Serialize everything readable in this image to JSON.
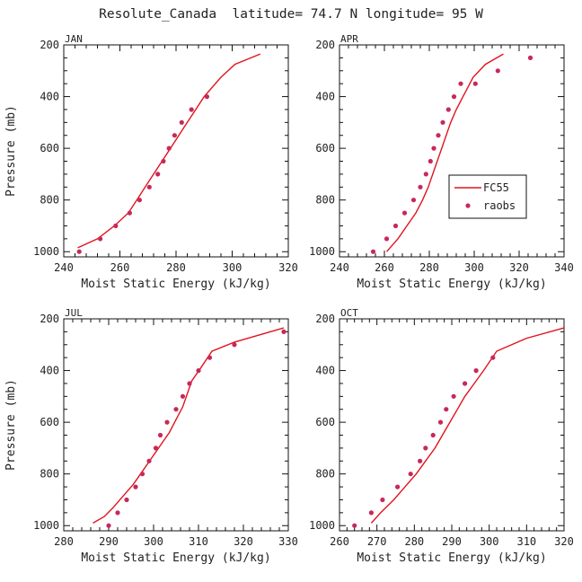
{
  "figure": {
    "title": "Resolute_Canada  latitude= 74.7 N longitude= 95 W"
  },
  "colors": {
    "model_line": "#e0141e",
    "obs_marker": "#c8285a",
    "axis": "#111111"
  },
  "chart_data": [
    {
      "type": "line",
      "panel": "JAN",
      "xlabel": "Moist Static Energy (kJ/kg)",
      "ylabel": "Pressure (mb)",
      "xlim": [
        240,
        320
      ],
      "xticks": [
        240,
        260,
        280,
        300,
        320
      ],
      "ylim": [
        1020,
        200
      ],
      "yticks": [
        200,
        400,
        600,
        800,
        1000
      ],
      "show_legend": false,
      "series": [
        {
          "name": "FC55",
          "kind": "line",
          "x": [
            245,
            252,
            258,
            263,
            266,
            269,
            272,
            275,
            278,
            281,
            284,
            287,
            290,
            296,
            301,
            310
          ],
          "y": [
            985,
            950,
            900,
            850,
            800,
            750,
            700,
            650,
            600,
            550,
            500,
            450,
            400,
            325,
            275,
            235
          ]
        },
        {
          "name": "raobs",
          "kind": "scatter",
          "x": [
            245.5,
            253,
            258.5,
            263.5,
            267,
            270.5,
            273.5,
            275.5,
            277.5,
            279.5,
            282,
            285.5,
            291
          ],
          "y": [
            1000,
            950,
            900,
            850,
            800,
            750,
            700,
            650,
            600,
            550,
            500,
            450,
            400
          ]
        }
      ]
    },
    {
      "type": "line",
      "panel": "APR",
      "xlabel": "Moist Static Energy (kJ/kg)",
      "ylabel": "",
      "xlim": [
        240,
        340
      ],
      "xticks": [
        240,
        260,
        280,
        300,
        320,
        340
      ],
      "ylim": [
        1020,
        200
      ],
      "yticks": [
        200,
        400,
        600,
        800,
        1000
      ],
      "show_legend": true,
      "legend_labels": {
        "line": "FC55",
        "scatter": "raobs"
      },
      "series": [
        {
          "name": "FC55",
          "kind": "line",
          "x": [
            261,
            266,
            270,
            274,
            277,
            279.5,
            281.5,
            283.5,
            285.5,
            287.5,
            289.5,
            292,
            295,
            299.5,
            305,
            313
          ],
          "y": [
            1000,
            950,
            900,
            850,
            800,
            750,
            700,
            650,
            600,
            550,
            500,
            450,
            400,
            325,
            275,
            235
          ]
        },
        {
          "name": "raobs",
          "kind": "scatter",
          "x": [
            255,
            261,
            265,
            269,
            273,
            276,
            278.5,
            280.5,
            282,
            284,
            286,
            288.5,
            291,
            294,
            300.5,
            310.5,
            325
          ],
          "y": [
            1000,
            950,
            900,
            850,
            800,
            750,
            700,
            650,
            600,
            550,
            500,
            450,
            400,
            350,
            350,
            300,
            250
          ]
        }
      ]
    },
    {
      "type": "line",
      "panel": "JUL",
      "xlabel": "Moist Static Energy (kJ/kg)",
      "ylabel": "Pressure (mb)",
      "xlim": [
        280,
        330
      ],
      "xticks": [
        280,
        290,
        300,
        310,
        320,
        330
      ],
      "ylim": [
        1020,
        200
      ],
      "yticks": [
        200,
        400,
        600,
        800,
        1000
      ],
      "show_legend": false,
      "series": [
        {
          "name": "FC55",
          "kind": "line",
          "x": [
            286.5,
            289,
            291,
            293.5,
            295.5,
            297.5,
            299.5,
            301.5,
            303.5,
            305,
            306.5,
            307.5,
            308.5,
            310.5,
            313,
            318,
            329
          ],
          "y": [
            990,
            965,
            930,
            880,
            840,
            790,
            740,
            690,
            640,
            590,
            540,
            490,
            440,
            390,
            325,
            290,
            235
          ]
        },
        {
          "name": "raobs",
          "kind": "scatter",
          "x": [
            290,
            292,
            294,
            296,
            297.5,
            299,
            300.5,
            301.5,
            303,
            305,
            306.5,
            308,
            310,
            312.5,
            318,
            329
          ],
          "y": [
            1000,
            950,
            900,
            850,
            800,
            750,
            700,
            650,
            600,
            550,
            500,
            450,
            400,
            350,
            300,
            250
          ]
        }
      ]
    },
    {
      "type": "line",
      "panel": "OCT",
      "xlabel": "Moist Static Energy (kJ/kg)",
      "ylabel": "",
      "xlim": [
        260,
        320
      ],
      "xticks": [
        260,
        270,
        280,
        290,
        300,
        310,
        320
      ],
      "ylim": [
        1020,
        200
      ],
      "yticks": [
        200,
        400,
        600,
        800,
        1000
      ],
      "show_legend": false,
      "series": [
        {
          "name": "FC55",
          "kind": "line",
          "x": [
            268.5,
            271,
            274.5,
            277.5,
            280.5,
            283,
            285.5,
            287.5,
            289.5,
            291.5,
            293.5,
            296,
            298.5,
            302,
            310,
            320
          ],
          "y": [
            990,
            950,
            900,
            850,
            800,
            750,
            700,
            650,
            600,
            550,
            500,
            450,
            400,
            325,
            275,
            235
          ]
        },
        {
          "name": "raobs",
          "kind": "scatter",
          "x": [
            264,
            268.5,
            271.5,
            275.5,
            279,
            281.5,
            283,
            285,
            287,
            288.5,
            290.5,
            293.5,
            296.5,
            301
          ],
          "y": [
            1000,
            950,
            900,
            850,
            800,
            750,
            700,
            650,
            600,
            550,
            500,
            450,
            400,
            350
          ]
        }
      ]
    }
  ]
}
